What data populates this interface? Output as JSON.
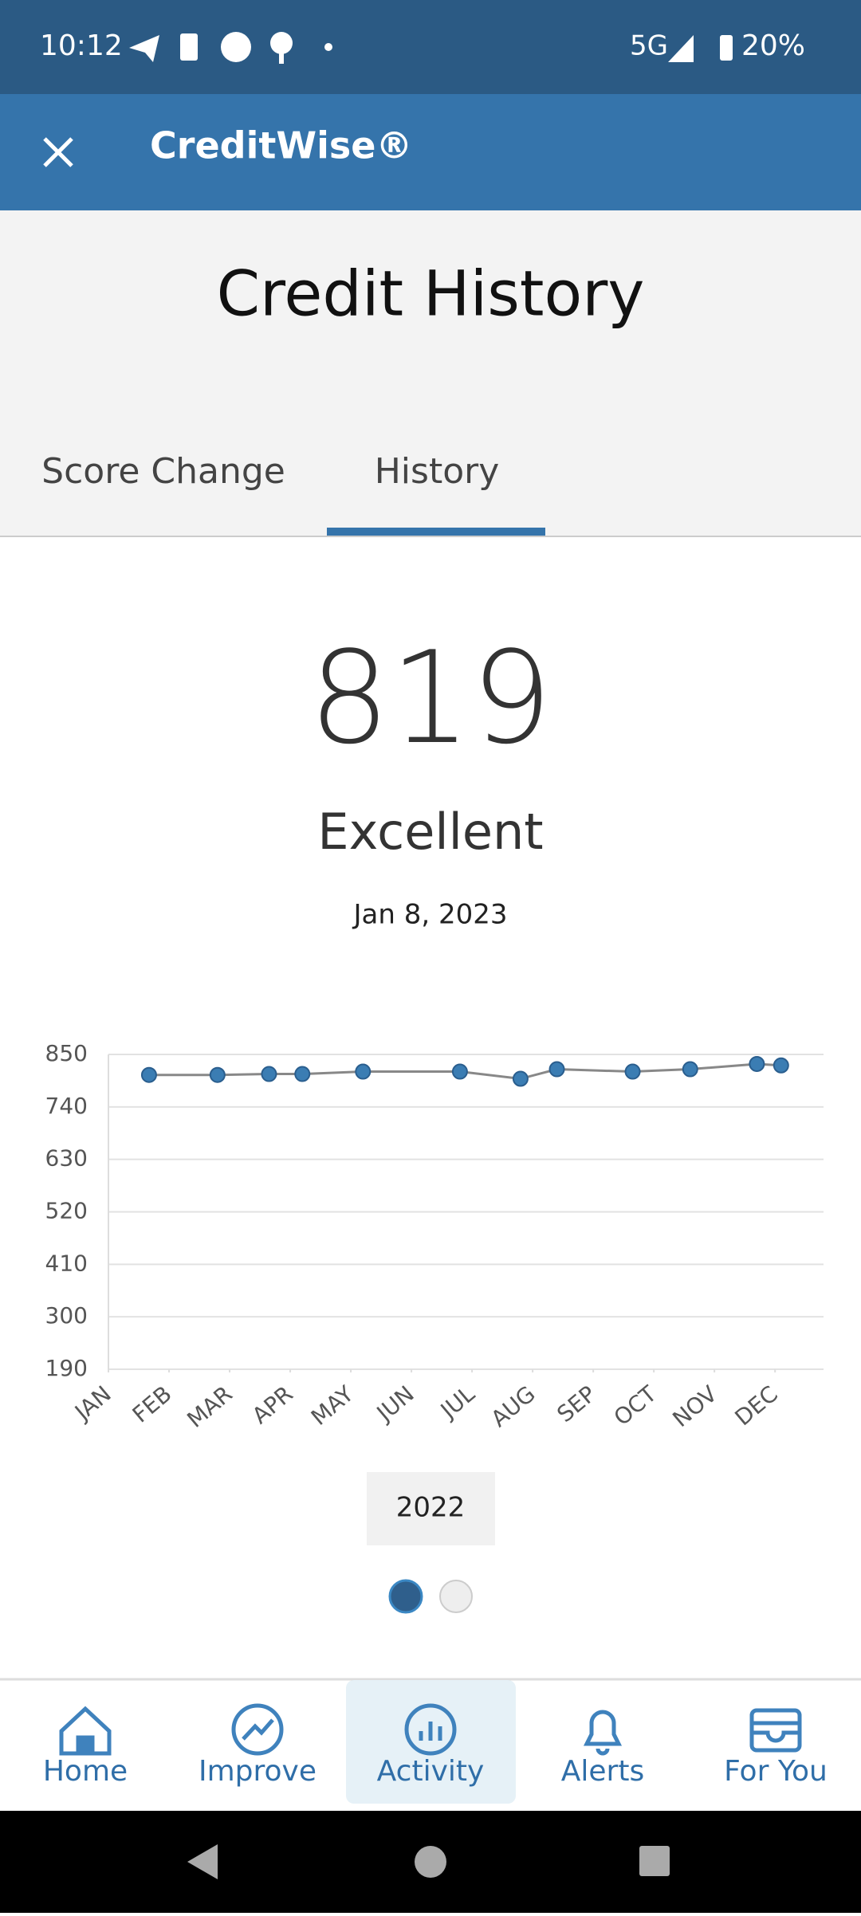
{
  "status_bar": {
    "time": "10:12",
    "network": "5G",
    "battery": "20%"
  },
  "app_bar": {
    "title": "CreditWise®"
  },
  "header": {
    "title": "Credit History"
  },
  "tabs": [
    "Score Change",
    "History"
  ],
  "score": {
    "value": "819",
    "rating": "Excellent",
    "date": "Jan 8, 2023"
  },
  "chart_data": {
    "type": "line",
    "x": [
      0.67,
      1.8,
      2.65,
      3.2,
      4.2,
      5.8,
      6.8,
      7.4,
      8.65,
      9.6,
      10.7,
      11.1
    ],
    "values": [
      807,
      807,
      809,
      809,
      814,
      814,
      799,
      819,
      814,
      819,
      830,
      827
    ],
    "color": "#3b7db3",
    "xlim": [
      0,
      11.8
    ],
    "xticks": [
      {
        "value": 0,
        "label": "JAN"
      },
      {
        "value": 1,
        "label": "FEB"
      },
      {
        "value": 2,
        "label": "MAR"
      },
      {
        "value": 3,
        "label": "APR"
      },
      {
        "value": 4,
        "label": "MAY"
      },
      {
        "value": 5,
        "label": "JUN"
      },
      {
        "value": 6,
        "label": "JUL"
      },
      {
        "value": 7,
        "label": "AUG"
      },
      {
        "value": 8,
        "label": "SEP"
      },
      {
        "value": 9,
        "label": "OCT"
      },
      {
        "value": 10,
        "label": "NOV"
      },
      {
        "value": 11,
        "label": "DEC"
      }
    ],
    "ylim": [
      190,
      850
    ],
    "yticks": [
      190,
      300,
      410,
      520,
      630,
      740,
      850
    ],
    "grid": true
  },
  "year": "2022",
  "nav": [
    "Home",
    "Improve",
    "Activity",
    "Alerts",
    "For You"
  ]
}
